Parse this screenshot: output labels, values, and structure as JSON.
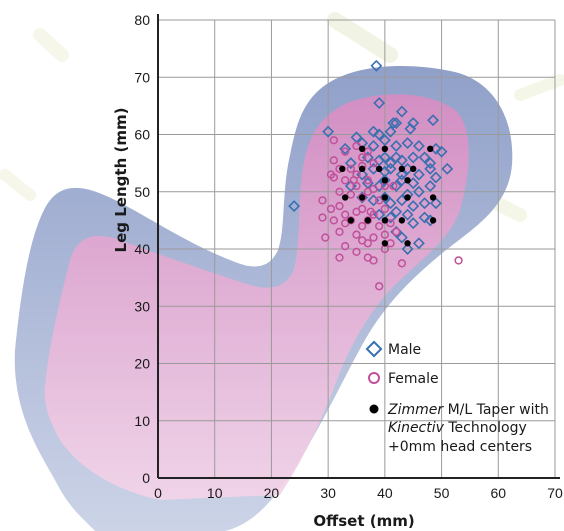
{
  "chart_data": {
    "type": "scatter",
    "xlabel": "Offset (mm)",
    "ylabel": "Leg Length (mm)",
    "xlim": [
      0,
      70
    ],
    "ylim": [
      0,
      80
    ],
    "x_ticks": [
      "0",
      "10",
      "20",
      "30",
      "40",
      "50",
      "60",
      "70"
    ],
    "y_ticks": [
      "0",
      "10",
      "20",
      "30",
      "40",
      "50",
      "60",
      "70",
      "80"
    ],
    "grid": true,
    "legend_position": "bottom-right",
    "legend": {
      "male": "Male",
      "female": "Female",
      "zimmer_line1_italic": "Zimmer",
      "zimmer_line1_rest": " M/L Taper with",
      "zimmer_line2_italic": "Kinectiv",
      "zimmer_line2_rest": " Technology",
      "zimmer_line3": "+0mm head centers"
    },
    "colors": {
      "male": "#3a6fb0",
      "female": "#c0509a",
      "zimmer": "#000000",
      "male_region": "#8f9fc6",
      "female_region": "#e6a7d1",
      "grid": "#9a9a9a"
    },
    "series": [
      {
        "name": "Male",
        "marker": "open-diamond",
        "points": [
          [
            38.5,
            72
          ],
          [
            39,
            65.5
          ],
          [
            43,
            64
          ],
          [
            41.5,
            62
          ],
          [
            42,
            62
          ],
          [
            45,
            62
          ],
          [
            44.5,
            61
          ],
          [
            48.5,
            62.5
          ],
          [
            30,
            60.5
          ],
          [
            35,
            59.5
          ],
          [
            38,
            60.5
          ],
          [
            39,
            60
          ],
          [
            41,
            60.5
          ],
          [
            36,
            58.5
          ],
          [
            38,
            58
          ],
          [
            40,
            59
          ],
          [
            42,
            58
          ],
          [
            44,
            58.5
          ],
          [
            46,
            58
          ],
          [
            49,
            57.5
          ],
          [
            50,
            57
          ],
          [
            33,
            57.5
          ],
          [
            34,
            55
          ],
          [
            37,
            56
          ],
          [
            39,
            55.5
          ],
          [
            40,
            56
          ],
          [
            41,
            55
          ],
          [
            42,
            56
          ],
          [
            43,
            55.5
          ],
          [
            45,
            56
          ],
          [
            47,
            56
          ],
          [
            48,
            55
          ],
          [
            36,
            53
          ],
          [
            38,
            54
          ],
          [
            40,
            53.5
          ],
          [
            41,
            54
          ],
          [
            43,
            53
          ],
          [
            44,
            54
          ],
          [
            46,
            53
          ],
          [
            48,
            54
          ],
          [
            49,
            52.5
          ],
          [
            51,
            54
          ],
          [
            34,
            51
          ],
          [
            37,
            51.5
          ],
          [
            39,
            51
          ],
          [
            40,
            52
          ],
          [
            42,
            51
          ],
          [
            43,
            52
          ],
          [
            45,
            51.5
          ],
          [
            46,
            50
          ],
          [
            48,
            51
          ],
          [
            36,
            49
          ],
          [
            38,
            48.5
          ],
          [
            40,
            49
          ],
          [
            41,
            48
          ],
          [
            43,
            48.5
          ],
          [
            44,
            49.5
          ],
          [
            45,
            47.5
          ],
          [
            47,
            48
          ],
          [
            49,
            48
          ],
          [
            39,
            46
          ],
          [
            41,
            45.5
          ],
          [
            42,
            46.5
          ],
          [
            44,
            46
          ],
          [
            45,
            44.5
          ],
          [
            47,
            45.5
          ],
          [
            48,
            45
          ],
          [
            42,
            43
          ],
          [
            43,
            42
          ],
          [
            24,
            47.5
          ],
          [
            44,
            40
          ],
          [
            46,
            41
          ]
        ]
      },
      {
        "name": "Female",
        "marker": "open-circle",
        "points": [
          [
            31,
            59
          ],
          [
            33,
            57
          ],
          [
            35,
            58
          ],
          [
            36,
            56
          ],
          [
            37,
            57
          ],
          [
            38,
            55
          ],
          [
            31,
            55.5
          ],
          [
            32,
            54
          ],
          [
            34,
            54
          ],
          [
            35,
            53
          ],
          [
            36,
            54.5
          ],
          [
            30.5,
            53
          ],
          [
            31,
            52.5
          ],
          [
            33,
            52
          ],
          [
            35,
            51
          ],
          [
            37,
            52
          ],
          [
            38,
            50.5
          ],
          [
            40,
            51
          ],
          [
            32,
            50
          ],
          [
            34,
            49.5
          ],
          [
            36,
            49
          ],
          [
            37,
            50
          ],
          [
            39,
            48.5
          ],
          [
            29,
            48.5
          ],
          [
            30.5,
            47
          ],
          [
            32,
            47.5
          ],
          [
            33,
            46
          ],
          [
            35,
            46.5
          ],
          [
            36,
            47
          ],
          [
            38,
            46
          ],
          [
            40,
            47
          ],
          [
            31,
            45
          ],
          [
            33,
            44.5
          ],
          [
            34,
            45
          ],
          [
            36,
            44
          ],
          [
            37,
            45
          ],
          [
            39,
            44
          ],
          [
            41,
            44.5
          ],
          [
            29,
            45.5
          ],
          [
            32,
            43
          ],
          [
            35,
            42.5
          ],
          [
            36,
            41.5
          ],
          [
            38,
            42
          ],
          [
            40,
            42.5
          ],
          [
            42,
            43
          ],
          [
            33,
            40.5
          ],
          [
            37,
            41
          ],
          [
            40,
            40
          ],
          [
            41,
            41
          ],
          [
            35,
            39.5
          ],
          [
            29.5,
            42
          ],
          [
            32,
            38.5
          ],
          [
            37,
            38.5
          ],
          [
            38,
            38
          ],
          [
            43,
            37.5
          ],
          [
            39,
            33.5
          ],
          [
            53,
            38
          ],
          [
            41.5,
            51
          ],
          [
            34.5,
            52
          ],
          [
            37.5,
            46.5
          ]
        ]
      },
      {
        "name": "Zimmer M/L Taper with Kinectiv Technology +0mm head centers",
        "marker": "filled-circle",
        "points": [
          [
            32.5,
            54
          ],
          [
            36,
            54
          ],
          [
            39,
            54
          ],
          [
            43,
            54
          ],
          [
            45,
            54
          ],
          [
            33,
            49
          ],
          [
            36,
            49
          ],
          [
            40,
            49
          ],
          [
            44,
            49
          ],
          [
            48.5,
            49
          ],
          [
            34,
            45
          ],
          [
            37,
            45
          ],
          [
            40,
            45
          ],
          [
            43,
            45
          ],
          [
            48.5,
            45
          ],
          [
            40,
            57.5
          ],
          [
            48,
            57.5
          ],
          [
            36,
            57.5
          ],
          [
            40,
            41
          ],
          [
            44,
            41
          ],
          [
            40,
            52
          ],
          [
            44,
            52
          ]
        ]
      }
    ]
  }
}
